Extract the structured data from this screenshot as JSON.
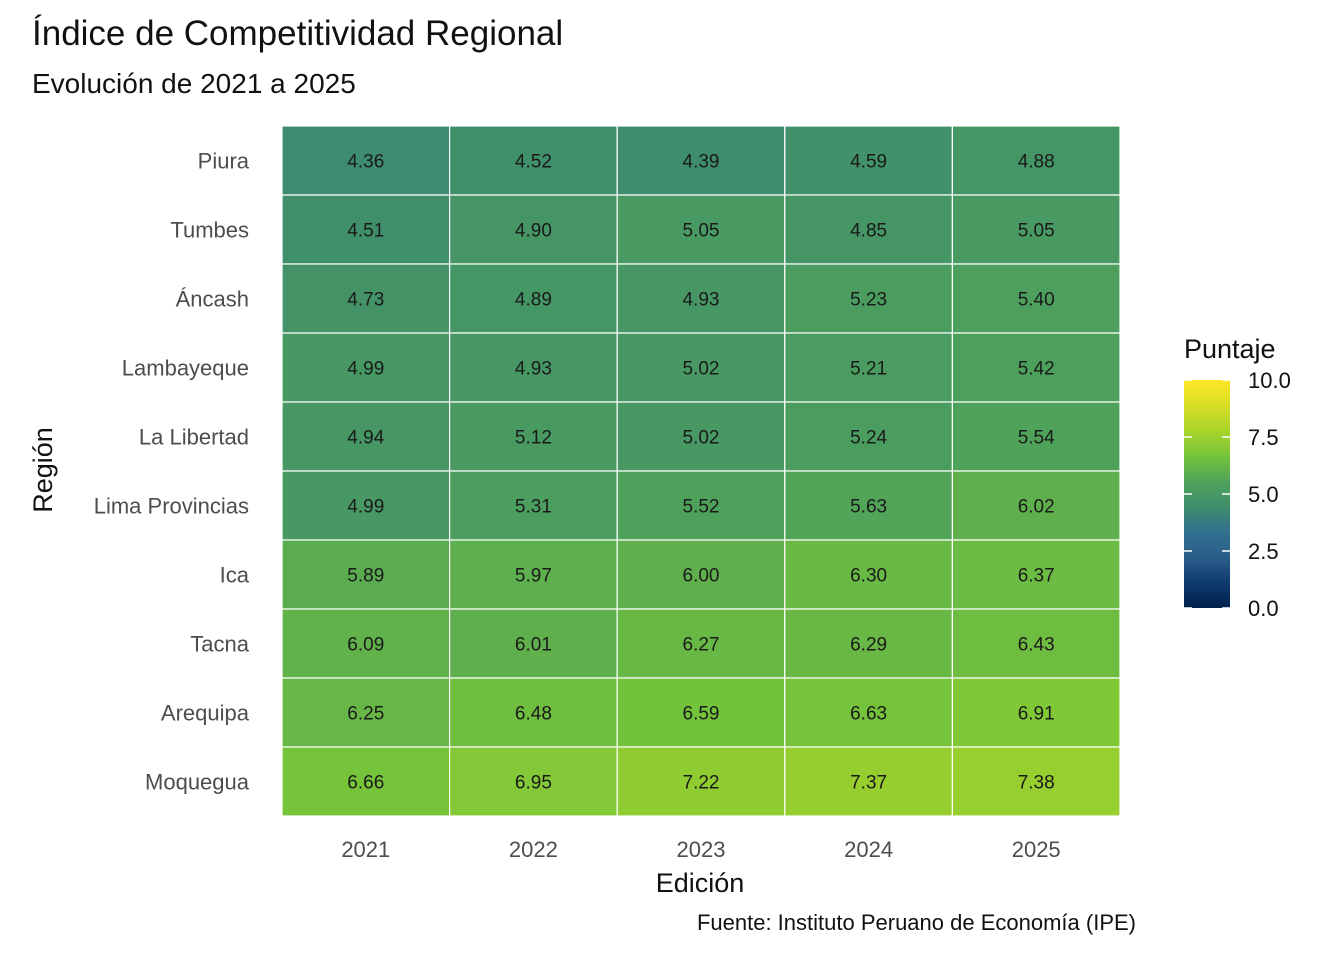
{
  "chart_data": {
    "type": "heatmap",
    "title": "Índice de Competitividad Regional",
    "subtitle": "Evolución de 2021 a 2025",
    "caption": "Fuente: Instituto Peruano de Economía (IPE)",
    "xlabel": "Edición",
    "ylabel": "Región",
    "x": [
      "2021",
      "2022",
      "2023",
      "2024",
      "2025"
    ],
    "y": [
      "Piura",
      "Tumbes",
      "Áncash",
      "Lambayeque",
      "La Libertad",
      "Lima Provincias",
      "Ica",
      "Tacna",
      "Arequipa",
      "Moquegua"
    ],
    "values": [
      [
        4.36,
        4.52,
        4.39,
        4.59,
        4.88
      ],
      [
        4.51,
        4.9,
        5.05,
        4.85,
        5.05
      ],
      [
        4.73,
        4.89,
        4.93,
        5.23,
        5.4
      ],
      [
        4.99,
        4.93,
        5.02,
        5.21,
        5.42
      ],
      [
        4.94,
        5.12,
        5.02,
        5.24,
        5.54
      ],
      [
        4.99,
        5.31,
        5.52,
        5.63,
        6.02
      ],
      [
        5.89,
        5.97,
        6.0,
        6.3,
        6.37
      ],
      [
        6.09,
        6.01,
        6.27,
        6.29,
        6.43
      ],
      [
        6.25,
        6.48,
        6.59,
        6.63,
        6.91
      ],
      [
        6.66,
        6.95,
        7.22,
        7.37,
        7.38
      ]
    ],
    "labels": [
      [
        "4.36",
        "4.52",
        "4.39",
        "4.59",
        "4.88"
      ],
      [
        "4.51",
        "4.90",
        "5.05",
        "4.85",
        "5.05"
      ],
      [
        "4.73",
        "4.89",
        "4.93",
        "5.23",
        "5.40"
      ],
      [
        "4.99",
        "4.93",
        "5.02",
        "5.21",
        "5.42"
      ],
      [
        "4.94",
        "5.12",
        "5.02",
        "5.24",
        "5.54"
      ],
      [
        "4.99",
        "5.31",
        "5.52",
        "5.63",
        "6.02"
      ],
      [
        "5.89",
        "5.97",
        "6.00",
        "6.30",
        "6.37"
      ],
      [
        "6.09",
        "6.01",
        "6.27",
        "6.29",
        "6.43"
      ],
      [
        "6.25",
        "6.48",
        "6.59",
        "6.63",
        "6.91"
      ],
      [
        "6.66",
        "6.95",
        "7.22",
        "7.37",
        "7.38"
      ]
    ],
    "legend": {
      "title": "Puntaje",
      "position": "right",
      "range": [
        0,
        10
      ],
      "ticks": [
        "0.0",
        "2.5",
        "5.0",
        "7.5",
        "10.0"
      ],
      "colormap": "viridis",
      "colors": [
        "#00204D",
        "#0F3B6E",
        "#2B5E8A",
        "#31708E",
        "#3F8E6C",
        "#4FA25A",
        "#76C43A",
        "#A9D42A",
        "#D8DE25",
        "#FDE725"
      ]
    }
  }
}
